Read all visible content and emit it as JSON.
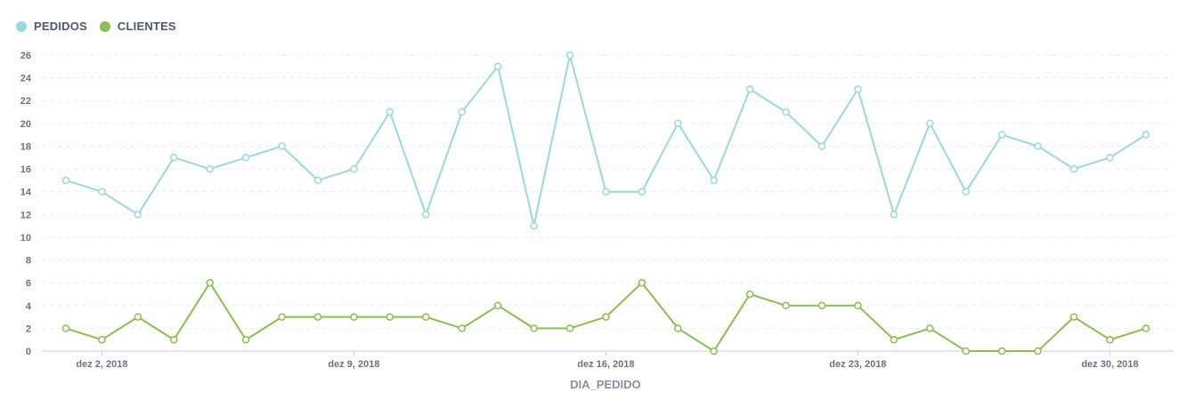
{
  "legend": [
    {
      "label": "PEDIDOS",
      "color": "#98d9d9"
    },
    {
      "label": "CLIENTES",
      "color": "#88bf4d"
    }
  ],
  "chart_data": {
    "type": "line",
    "xlabel": "DIA_PEDIDO",
    "ylabel": "",
    "ylim": [
      0,
      26
    ],
    "yticks": [
      0,
      2,
      4,
      6,
      8,
      10,
      12,
      14,
      16,
      18,
      20,
      22,
      24,
      26
    ],
    "grid": true,
    "legend_position": "top-left",
    "x": [
      "2018-12-01",
      "2018-12-02",
      "2018-12-03",
      "2018-12-04",
      "2018-12-05",
      "2018-12-06",
      "2018-12-07",
      "2018-12-08",
      "2018-12-09",
      "2018-12-10",
      "2018-12-11",
      "2018-12-12",
      "2018-12-13",
      "2018-12-14",
      "2018-12-15",
      "2018-12-16",
      "2018-12-17",
      "2018-12-18",
      "2018-12-19",
      "2018-12-20",
      "2018-12-21",
      "2018-12-22",
      "2018-12-23",
      "2018-12-24",
      "2018-12-25",
      "2018-12-26",
      "2018-12-27",
      "2018-12-28",
      "2018-12-29",
      "2018-12-30",
      "2018-12-31"
    ],
    "x_tick_labels": [
      {
        "date": "2018-12-02",
        "label": "dez 2, 2018"
      },
      {
        "date": "2018-12-09",
        "label": "dez 9, 2018"
      },
      {
        "date": "2018-12-16",
        "label": "dez 16, 2018"
      },
      {
        "date": "2018-12-23",
        "label": "dez 23, 2018"
      },
      {
        "date": "2018-12-30",
        "label": "dez 30, 2018"
      }
    ],
    "series": [
      {
        "name": "PEDIDOS",
        "color": "#98d9d9",
        "values": [
          15,
          14,
          12,
          17,
          16,
          17,
          18,
          15,
          16,
          21,
          12,
          21,
          25,
          11,
          26,
          14,
          14,
          20,
          15,
          23,
          21,
          18,
          23,
          12,
          20,
          14,
          19,
          18,
          16,
          17,
          19
        ]
      },
      {
        "name": "CLIENTES",
        "color": "#88bf4d",
        "values": [
          2,
          1,
          3,
          1,
          6,
          1,
          3,
          3,
          3,
          3,
          3,
          2,
          4,
          2,
          2,
          3,
          6,
          2,
          0,
          5,
          4,
          4,
          4,
          1,
          2,
          0,
          0,
          0,
          3,
          1,
          2
        ]
      }
    ]
  }
}
